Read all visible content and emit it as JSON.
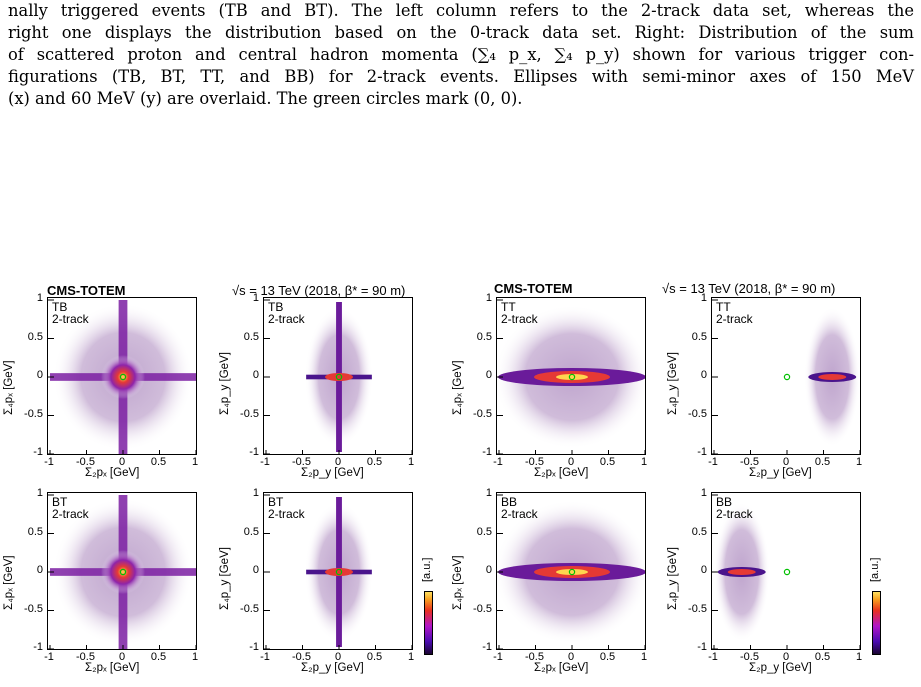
{
  "caption": {
    "lines": [
      "nally triggered events (TB and BT). The left column refers to the 2-track data set, whereas the",
      "right one displays the distribution based on the 0-track data set. Right: Distribution of the sum",
      "of scattered proton and central hadron momenta (∑₄ p_x, ∑₄ p_y) shown for various trigger con-",
      "figurations (TB, BT, TT, and BB) for 2-track events. Ellipses with semi-minor axes of 150 MeV",
      "(x) and 60 MeV (y) are overlaid. The green circles mark (0, 0)."
    ]
  },
  "figure": {
    "experiment_label": "CMS-TOTEM",
    "energy_label": "√s = 13 TeV (2018, β* = 90 m)",
    "colorbar_label": "[a.u.]",
    "colors": {
      "bg": "#ffffff",
      "mid": "#7b1fa2",
      "hot": "#e53935",
      "core": "#ffd54f",
      "zero_marker": "#00c000"
    },
    "tick_labels": [
      "-1",
      "-0.5",
      "0",
      "0.5",
      "1"
    ],
    "panels": [
      {
        "trigger": "TB",
        "sample": "2-track",
        "xlabel": "Σ₂pₓ [GeV]",
        "ylabel": "Σ₄pₓ [GeV]",
        "shape": "cross"
      },
      {
        "trigger": "TB",
        "sample": "2-track",
        "xlabel": "Σ₂p_y [GeV]",
        "ylabel": "Σ₄p_y [GeV]",
        "shape": "vline"
      },
      {
        "trigger": "TT",
        "sample": "2-track",
        "xlabel": "Σ₂pₓ [GeV]",
        "ylabel": "Σ₄pₓ [GeV]",
        "shape": "ellipse"
      },
      {
        "trigger": "TT",
        "sample": "2-track",
        "xlabel": "Σ₂p_y [GeV]",
        "ylabel": "Σ₄p_y [GeV]",
        "shape": "right"
      },
      {
        "trigger": "BT",
        "sample": "2-track",
        "xlabel": "Σ₂pₓ [GeV]",
        "ylabel": "Σ₄pₓ [GeV]",
        "shape": "cross"
      },
      {
        "trigger": "BT",
        "sample": "2-track",
        "xlabel": "Σ₂p_y [GeV]",
        "ylabel": "Σ₄p_y [GeV]",
        "shape": "vline"
      },
      {
        "trigger": "BB",
        "sample": "2-track",
        "xlabel": "Σ₂pₓ [GeV]",
        "ylabel": "Σ₄pₓ [GeV]",
        "shape": "ellipse"
      },
      {
        "trigger": "BB",
        "sample": "2-track",
        "xlabel": "Σ₂p_y [GeV]",
        "ylabel": "Σ₄p_y [GeV]",
        "shape": "left"
      }
    ]
  }
}
